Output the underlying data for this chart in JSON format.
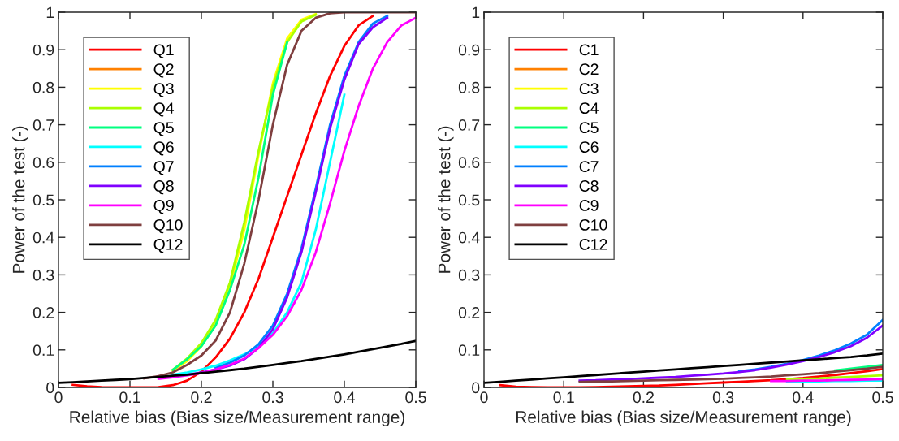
{
  "chart_data": [
    {
      "type": "line",
      "xlabel": "Relative bias (Bias size/Measurement range)",
      "ylabel": "Power of the test (-)",
      "x": [
        0,
        0.02,
        0.04,
        0.06,
        0.08,
        0.1,
        0.12,
        0.14,
        0.16,
        0.18,
        0.2,
        0.22,
        0.24,
        0.26,
        0.28,
        0.3,
        0.32,
        0.34,
        0.36,
        0.38,
        0.4,
        0.42,
        0.44,
        0.46,
        0.48,
        0.5
      ],
      "xlim": [
        0,
        0.5
      ],
      "xticks": [
        0,
        0.1,
        0.2,
        0.3,
        0.4,
        0.5
      ],
      "ylim": [
        0,
        1
      ],
      "yticks": [
        0,
        0.1,
        0.2,
        0.3,
        0.4,
        0.5,
        0.6,
        0.7,
        0.8,
        0.9,
        1
      ],
      "grid": false,
      "legend": "top left",
      "marker": "none",
      "line_style": "solid",
      "series": [
        {
          "name": "Q1",
          "color": "#ff0000",
          "values": [
            null,
            0.007,
            0.003,
            0.001,
            0,
            0,
            0,
            0.001,
            0.006,
            0.018,
            0.042,
            0.08,
            0.13,
            0.2,
            0.29,
            0.4,
            0.51,
            0.62,
            0.73,
            0.83,
            0.91,
            0.965,
            0.99,
            null,
            null,
            null
          ]
        },
        {
          "name": "Q2",
          "color": "#ff8000",
          "values": [
            null,
            null,
            null,
            null,
            null,
            null,
            null,
            null,
            null,
            null,
            null,
            null,
            null,
            null,
            null,
            null,
            null,
            null,
            null,
            null,
            null,
            null,
            null,
            null,
            null,
            null
          ]
        },
        {
          "name": "Q3",
          "color": "#ffff00",
          "values": [
            null,
            null,
            null,
            null,
            null,
            null,
            null,
            null,
            0.044,
            0.07,
            0.11,
            0.17,
            0.27,
            0.42,
            0.62,
            0.81,
            0.93,
            0.98,
            0.995,
            null,
            null,
            null,
            null,
            null,
            null,
            null
          ]
        },
        {
          "name": "Q4",
          "color": "#aaff00",
          "values": [
            null,
            null,
            null,
            null,
            null,
            null,
            null,
            null,
            0.047,
            0.077,
            0.118,
            0.18,
            0.28,
            0.44,
            0.63,
            0.8,
            0.92,
            0.975,
            0.993,
            null,
            null,
            null,
            null,
            null,
            null,
            null
          ]
        },
        {
          "name": "Q5",
          "color": "#00ff80",
          "values": [
            null,
            null,
            null,
            null,
            null,
            null,
            null,
            null,
            0.047,
            0.075,
            0.11,
            0.165,
            0.26,
            0.38,
            0.56,
            0.78,
            0.92,
            null,
            null,
            null,
            null,
            null,
            null,
            null,
            null,
            null
          ]
        },
        {
          "name": "Q6",
          "color": "#00ffff",
          "values": [
            null,
            null,
            null,
            null,
            null,
            null,
            null,
            null,
            0.034,
            0.04,
            0.048,
            0.058,
            0.072,
            0.088,
            0.11,
            0.145,
            0.2,
            0.28,
            0.42,
            0.6,
            0.78,
            null,
            null,
            null,
            null,
            null
          ]
        },
        {
          "name": "Q7",
          "color": "#0080ff",
          "values": [
            null,
            null,
            null,
            null,
            null,
            null,
            null,
            null,
            null,
            null,
            null,
            0.052,
            0.066,
            0.085,
            0.115,
            0.165,
            0.25,
            0.37,
            0.53,
            0.7,
            0.83,
            0.92,
            0.97,
            0.99,
            null,
            null
          ]
        },
        {
          "name": "Q8",
          "color": "#8000ff",
          "values": [
            null,
            null,
            null,
            null,
            null,
            null,
            null,
            null,
            0.029,
            0.034,
            0.04,
            0.048,
            0.058,
            0.075,
            0.105,
            0.155,
            0.24,
            0.36,
            0.52,
            0.69,
            0.82,
            0.915,
            0.96,
            0.985,
            null,
            null
          ]
        },
        {
          "name": "Q9",
          "color": "#ff00ff",
          "values": [
            null,
            null,
            null,
            null,
            null,
            null,
            null,
            0.023,
            0.027,
            0.032,
            0.038,
            0.048,
            0.06,
            0.077,
            0.105,
            0.14,
            0.19,
            0.26,
            0.36,
            0.49,
            0.63,
            0.75,
            0.85,
            0.92,
            0.965,
            0.985
          ]
        },
        {
          "name": "Q10",
          "color": "#7f3f3f",
          "values": [
            null,
            null,
            null,
            null,
            null,
            null,
            0.024,
            0.03,
            0.04,
            0.06,
            0.085,
            0.125,
            0.2,
            0.33,
            0.5,
            0.7,
            0.86,
            0.95,
            0.985,
            0.997,
            1,
            1,
            1,
            1,
            1,
            1
          ]
        },
        {
          "name": "Q12",
          "color": "#000000",
          "values": [
            0.012,
            0.014,
            0.016,
            0.018,
            0.02,
            0.022,
            0.025,
            0.028,
            0.031,
            0.034,
            0.038,
            0.042,
            0.046,
            0.05,
            0.055,
            0.06,
            0.065,
            0.07,
            0.076,
            0.082,
            0.088,
            0.095,
            0.102,
            0.109,
            0.116,
            0.124
          ]
        }
      ]
    },
    {
      "type": "line",
      "xlabel": "Relative bias (Bias size/Measurement range)",
      "ylabel": "Power of the test (-)",
      "x": [
        0,
        0.02,
        0.04,
        0.06,
        0.08,
        0.1,
        0.12,
        0.14,
        0.16,
        0.18,
        0.2,
        0.22,
        0.24,
        0.26,
        0.28,
        0.3,
        0.32,
        0.34,
        0.36,
        0.38,
        0.4,
        0.42,
        0.44,
        0.46,
        0.48,
        0.5
      ],
      "xlim": [
        0,
        0.5
      ],
      "xticks": [
        0,
        0.1,
        0.2,
        0.3,
        0.4,
        0.5
      ],
      "ylim": [
        0,
        1
      ],
      "yticks": [
        0,
        0.1,
        0.2,
        0.3,
        0.4,
        0.5,
        0.6,
        0.7,
        0.8,
        0.9,
        1
      ],
      "grid": false,
      "legend": "top left",
      "marker": "none",
      "line_style": "solid",
      "series": [
        {
          "name": "C1",
          "color": "#ff0000",
          "values": [
            null,
            0.006,
            0.002,
            0.001,
            0,
            0,
            0,
            0.001,
            0.002,
            0.003,
            0.004,
            0.005,
            0.007,
            0.009,
            0.011,
            0.013,
            0.015,
            0.017,
            0.019,
            0.022,
            0.025,
            0.029,
            0.033,
            0.038,
            0.043,
            0.049
          ]
        },
        {
          "name": "C2",
          "color": "#ff8000",
          "values": [
            null,
            null,
            null,
            null,
            null,
            null,
            null,
            null,
            null,
            null,
            null,
            null,
            null,
            null,
            null,
            null,
            null,
            null,
            null,
            null,
            null,
            null,
            null,
            null,
            null,
            null
          ]
        },
        {
          "name": "C3",
          "color": "#ffff00",
          "values": [
            null,
            null,
            null,
            null,
            null,
            null,
            null,
            null,
            null,
            null,
            null,
            null,
            null,
            null,
            null,
            null,
            null,
            null,
            null,
            null,
            null,
            null,
            null,
            null,
            null,
            null
          ]
        },
        {
          "name": "C4",
          "color": "#aaff00",
          "values": [
            null,
            null,
            null,
            null,
            null,
            null,
            null,
            null,
            null,
            null,
            null,
            null,
            null,
            null,
            null,
            null,
            null,
            null,
            null,
            0.022,
            0.023,
            0.024,
            0.026,
            0.028,
            0.03,
            0.032
          ]
        },
        {
          "name": "C5",
          "color": "#00ff80",
          "values": [
            null,
            null,
            null,
            null,
            null,
            null,
            null,
            null,
            null,
            null,
            null,
            null,
            null,
            null,
            null,
            null,
            null,
            null,
            null,
            null,
            null,
            null,
            0.045,
            0.05,
            0.055,
            0.06
          ]
        },
        {
          "name": "C6",
          "color": "#00ffff",
          "values": [
            null,
            null,
            null,
            null,
            null,
            null,
            null,
            null,
            null,
            null,
            null,
            null,
            null,
            null,
            null,
            null,
            null,
            null,
            null,
            0.016,
            0.016,
            0.016,
            0.017,
            0.017,
            0.018,
            0.018
          ]
        },
        {
          "name": "C7",
          "color": "#0080ff",
          "values": [
            null,
            null,
            null,
            null,
            null,
            null,
            null,
            null,
            null,
            null,
            null,
            null,
            null,
            null,
            null,
            null,
            0.043,
            0.048,
            0.055,
            0.063,
            0.073,
            0.085,
            0.099,
            0.117,
            0.14,
            0.18
          ]
        },
        {
          "name": "C8",
          "color": "#8000ff",
          "values": [
            null,
            null,
            null,
            null,
            null,
            null,
            0.018,
            0.019,
            0.021,
            0.022,
            0.024,
            0.026,
            0.028,
            0.031,
            0.034,
            0.037,
            0.041,
            0.046,
            0.053,
            0.061,
            0.07,
            0.081,
            0.094,
            0.11,
            0.132,
            0.165
          ]
        },
        {
          "name": "C9",
          "color": "#ff00ff",
          "values": [
            null,
            null,
            null,
            null,
            null,
            null,
            null,
            null,
            null,
            null,
            null,
            null,
            null,
            null,
            null,
            null,
            null,
            null,
            0.017,
            0.017,
            0.018,
            0.018,
            0.019,
            0.02,
            0.021,
            0.022
          ]
        },
        {
          "name": "C10",
          "color": "#7f3f3f",
          "values": [
            null,
            null,
            null,
            null,
            null,
            null,
            0.015,
            0.016,
            0.016,
            0.017,
            0.018,
            0.019,
            0.02,
            0.021,
            0.022,
            0.023,
            0.025,
            0.027,
            0.029,
            0.032,
            0.035,
            0.038,
            0.042,
            0.046,
            0.05,
            0.055
          ]
        },
        {
          "name": "C12",
          "color": "#000000",
          "values": [
            0.012,
            0.015,
            0.018,
            0.021,
            0.024,
            0.027,
            0.03,
            0.033,
            0.036,
            0.039,
            0.042,
            0.045,
            0.048,
            0.051,
            0.054,
            0.057,
            0.06,
            0.063,
            0.066,
            0.069,
            0.072,
            0.075,
            0.078,
            0.081,
            0.085,
            0.09
          ]
        }
      ]
    }
  ]
}
